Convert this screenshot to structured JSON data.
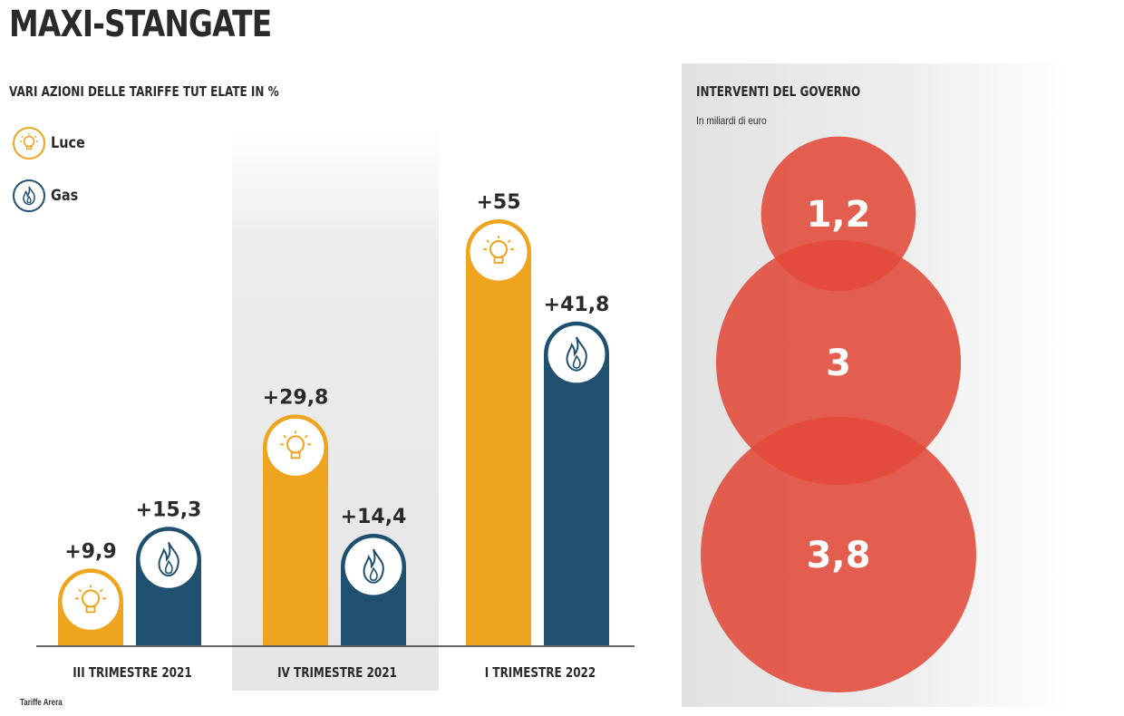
{
  "title": "MAXI-STANGATE",
  "subtitle": "VARI AZIONI DELLE TARIFFE TUT ELATE IN %",
  "legend": [
    {
      "label": "Luce",
      "color": "#eea41e",
      "icon": "lightbulb-icon"
    },
    {
      "label": "Gas",
      "color": "#1f5070",
      "icon": "flame-icon"
    }
  ],
  "chart_data": [
    {
      "type": "bar",
      "title": "VARI AZIONI DELLE TARIFFE TUT ELATE IN %",
      "categories": [
        "III TRIMESTRE 2021",
        "IV TRIMESTRE 2021",
        "I TRIMESTRE 2022"
      ],
      "series": [
        {
          "name": "Luce",
          "values": [
            9.9,
            29.8,
            55
          ],
          "labels": [
            "+9,9",
            "+29,8",
            "+55"
          ],
          "color": "#eea41e"
        },
        {
          "name": "Gas",
          "values": [
            15.3,
            14.4,
            41.8
          ],
          "labels": [
            "+15,3",
            "+14,4",
            "+41,8"
          ],
          "color": "#1f5070"
        }
      ],
      "ylim": [
        0,
        60
      ],
      "grid": false,
      "legend_position": "top-left"
    },
    {
      "type": "bubble",
      "title": "INTERVENTI DEL GOVERNO",
      "unit": "In miliardi di euro",
      "values": [
        1.2,
        3,
        3.8
      ],
      "labels": [
        "1,2",
        "3",
        "3,8"
      ],
      "color": "#e34a3a"
    }
  ],
  "source": "Tariffe Arera"
}
